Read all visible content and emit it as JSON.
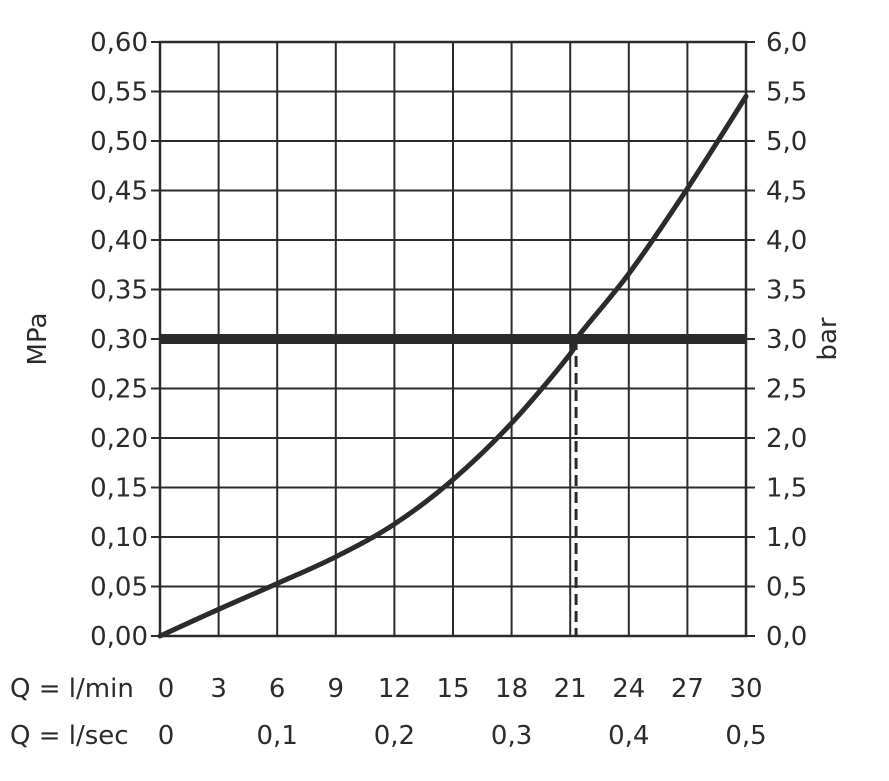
{
  "chart_data": {
    "type": "line",
    "left_axis": {
      "label": "MPa",
      "ticks": [
        "0,00",
        "0,05",
        "0,10",
        "0,15",
        "0,20",
        "0,25",
        "0,30",
        "0,35",
        "0,40",
        "0,45",
        "0,50",
        "0,55",
        "0,60"
      ],
      "range": [
        0,
        0.6
      ]
    },
    "right_axis": {
      "label": "bar",
      "ticks": [
        "0,0",
        "0,5",
        "1,0",
        "1,5",
        "2,0",
        "2,5",
        "3,0",
        "3,5",
        "4,0",
        "4,5",
        "5,0",
        "5,5",
        "6,0"
      ],
      "range": [
        0,
        6.0
      ]
    },
    "x_axis": {
      "range": [
        0,
        30
      ],
      "rows": [
        {
          "label": "Q = l/min",
          "ticks": [
            {
              "value": 0,
              "text": "0"
            },
            {
              "value": 3,
              "text": "3"
            },
            {
              "value": 6,
              "text": "6"
            },
            {
              "value": 9,
              "text": "9"
            },
            {
              "value": 12,
              "text": "12"
            },
            {
              "value": 15,
              "text": "15"
            },
            {
              "value": 18,
              "text": "18"
            },
            {
              "value": 21,
              "text": "21"
            },
            {
              "value": 24,
              "text": "24"
            },
            {
              "value": 27,
              "text": "27"
            },
            {
              "value": 30,
              "text": "30"
            }
          ]
        },
        {
          "label": "Q = l/sec",
          "ticks": [
            {
              "value": 0,
              "text": "0"
            },
            {
              "value": 6,
              "text": "0,1"
            },
            {
              "value": 12,
              "text": "0,2"
            },
            {
              "value": 18,
              "text": "0,3"
            },
            {
              "value": 24,
              "text": "0,4"
            },
            {
              "value": 30,
              "text": "0,5"
            }
          ]
        }
      ]
    },
    "grid": true,
    "series": [
      {
        "x": [
          0,
          3,
          6,
          9,
          12,
          15,
          18,
          21,
          21.3,
          24,
          27,
          30
        ],
        "y": [
          0,
          0.027,
          0.053,
          0.08,
          0.113,
          0.158,
          0.215,
          0.285,
          0.3,
          0.366,
          0.452,
          0.545
        ],
        "color": "#2b2b2b"
      }
    ],
    "reference_line": {
      "y": 0.3,
      "color": "#2b2b2b"
    },
    "intersection": {
      "x": 21.3,
      "y": 0.3
    }
  }
}
